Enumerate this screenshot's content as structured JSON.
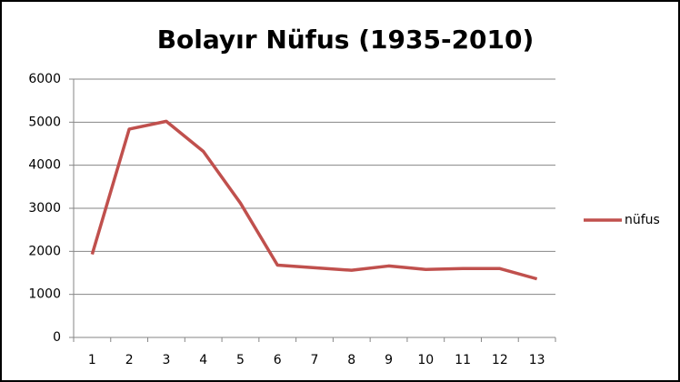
{
  "chart_data": {
    "type": "line",
    "title": "Bolayır Nüfus (1935-2010)",
    "categories": [
      "1",
      "2",
      "3",
      "4",
      "5",
      "6",
      "7",
      "8",
      "9",
      "10",
      "11",
      "12",
      "13"
    ],
    "series": [
      {
        "name": "nüfus",
        "color": "#c0504d",
        "values": [
          1930,
          4840,
          5020,
          4320,
          3120,
          1680,
          1620,
          1560,
          1660,
          1580,
          1600,
          1600,
          1360
        ]
      }
    ],
    "ylim": [
      0,
      6000
    ],
    "yticks": [
      0,
      1000,
      2000,
      3000,
      4000,
      5000,
      6000
    ],
    "grid": true,
    "legend": "right"
  }
}
